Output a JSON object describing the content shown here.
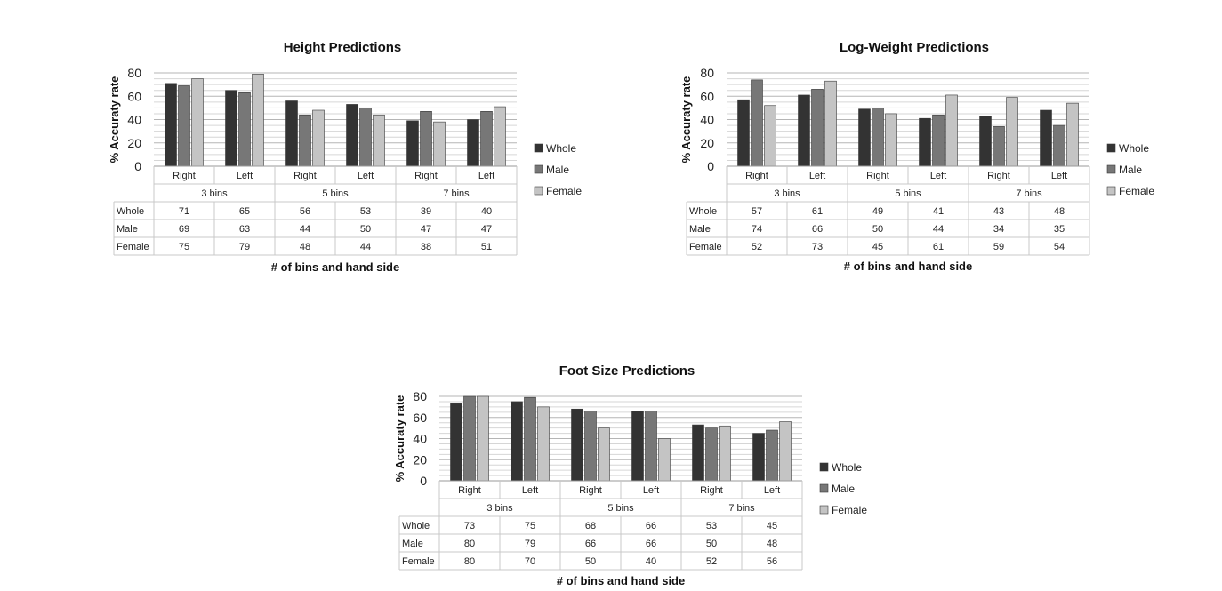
{
  "legend": [
    "Whole",
    "Male",
    "Female"
  ],
  "colors": [
    "#333333",
    "#777777",
    "#c4c4c4"
  ],
  "chart_data": [
    {
      "type": "bar",
      "title": "Height Predictions",
      "ylabel": "% Accuraty rate",
      "xlabel": "# of bins and hand side",
      "ylim": [
        0,
        80
      ],
      "yticks": [
        "0",
        "20",
        "40",
        "60",
        "80"
      ],
      "grid": true,
      "legend_position": "right",
      "categories": [
        "Right",
        "Left",
        "Right",
        "Left",
        "Right",
        "Left"
      ],
      "groups": [
        "3 bins",
        "5 bins",
        "7 bins"
      ],
      "series": [
        {
          "name": "Whole",
          "values": [
            71,
            65,
            56,
            53,
            39,
            40
          ]
        },
        {
          "name": "Male",
          "values": [
            69,
            63,
            44,
            50,
            47,
            47
          ]
        },
        {
          "name": "Female",
          "values": [
            75,
            79,
            48,
            44,
            38,
            51
          ]
        }
      ]
    },
    {
      "type": "bar",
      "title": "Log-Weight Predictions",
      "ylabel": "% Accuraty rate",
      "xlabel": "# of bins and hand side",
      "ylim": [
        0,
        80
      ],
      "yticks": [
        "0",
        "20",
        "40",
        "60",
        "80"
      ],
      "grid": true,
      "legend_position": "right",
      "categories": [
        "Right",
        "Left",
        "Right",
        "Left",
        "Right",
        "Left"
      ],
      "groups": [
        "3 bins",
        "5 bins",
        "7 bins"
      ],
      "series": [
        {
          "name": "Whole",
          "values": [
            57,
            61,
            49,
            41,
            43,
            48
          ]
        },
        {
          "name": "Male",
          "values": [
            74,
            66,
            50,
            44,
            34,
            35
          ]
        },
        {
          "name": "Female",
          "values": [
            52,
            73,
            45,
            61,
            59,
            54
          ]
        }
      ]
    },
    {
      "type": "bar",
      "title": "Foot Size Predictions",
      "ylabel": "% Accuraty rate",
      "xlabel": "# of bins and hand side",
      "ylim": [
        0,
        80
      ],
      "yticks": [
        "0",
        "20",
        "40",
        "60",
        "80"
      ],
      "grid": true,
      "legend_position": "right",
      "categories": [
        "Right",
        "Left",
        "Right",
        "Left",
        "Right",
        "Left"
      ],
      "groups": [
        "3 bins",
        "5 bins",
        "7 bins"
      ],
      "series": [
        {
          "name": "Whole",
          "values": [
            73,
            75,
            68,
            66,
            53,
            45
          ]
        },
        {
          "name": "Male",
          "values": [
            80,
            79,
            66,
            66,
            50,
            48
          ]
        },
        {
          "name": "Female",
          "values": [
            80,
            70,
            50,
            40,
            52,
            56
          ]
        }
      ]
    }
  ]
}
